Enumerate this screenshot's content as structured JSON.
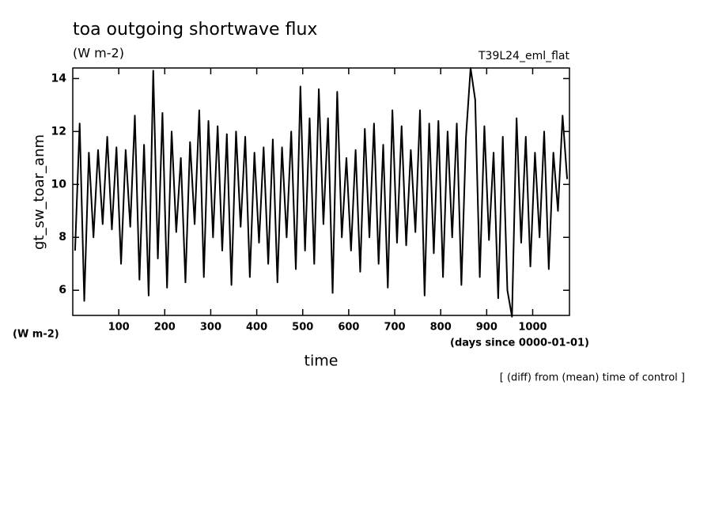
{
  "chart_data": {
    "type": "line",
    "title": "toa outgoing shortwave flux",
    "subtitle": "(W m-2)",
    "run_label": "T39L24_eml_flat",
    "y_label": "gt_sw_toar_anm",
    "y_unit": "(W m-2)",
    "x_unit": "(days since 0000-01-01)",
    "x_label": "time",
    "note": "[ (diff) from (mean) time of control ]",
    "xlim": [
      0,
      1080
    ],
    "ylim": [
      5.05,
      14.4
    ],
    "xticks": [
      100,
      200,
      300,
      400,
      500,
      600,
      700,
      800,
      900,
      1000
    ],
    "yticks": [
      6,
      8,
      10,
      12,
      14
    ],
    "x": [
      5,
      15,
      25,
      35,
      45,
      55,
      65,
      75,
      85,
      95,
      105,
      115,
      125,
      135,
      145,
      155,
      165,
      175,
      185,
      195,
      205,
      215,
      225,
      235,
      245,
      255,
      265,
      275,
      285,
      295,
      305,
      315,
      325,
      335,
      345,
      355,
      365,
      375,
      385,
      395,
      405,
      415,
      425,
      435,
      445,
      455,
      465,
      475,
      485,
      495,
      505,
      515,
      525,
      535,
      545,
      555,
      565,
      575,
      585,
      595,
      605,
      615,
      625,
      635,
      645,
      655,
      665,
      675,
      685,
      695,
      705,
      715,
      725,
      735,
      745,
      755,
      765,
      775,
      785,
      795,
      805,
      815,
      825,
      835,
      845,
      855,
      865,
      875,
      885,
      895,
      905,
      915,
      925,
      935,
      945,
      955,
      965,
      975,
      985,
      995,
      1005,
      1015,
      1025,
      1035,
      1045,
      1055,
      1065,
      1075
    ],
    "series": [
      {
        "color": "#000000",
        "values": [
          7.5,
          12.3,
          5.6,
          11.2,
          8.0,
          11.3,
          8.5,
          11.8,
          8.3,
          11.4,
          7.0,
          11.3,
          8.4,
          12.6,
          6.4,
          11.5,
          5.8,
          14.3,
          7.2,
          12.7,
          6.1,
          12.0,
          8.2,
          11.0,
          6.3,
          11.6,
          8.5,
          12.8,
          6.5,
          12.4,
          8.0,
          12.2,
          7.5,
          11.9,
          6.2,
          12.0,
          8.4,
          11.8,
          6.5,
          11.2,
          7.8,
          11.4,
          7.0,
          11.7,
          6.3,
          11.4,
          8.0,
          12.0,
          6.8,
          13.7,
          7.5,
          12.5,
          7.0,
          13.6,
          8.5,
          12.5,
          5.9,
          13.5,
          8.0,
          11.0,
          7.5,
          11.3,
          6.7,
          12.1,
          8.0,
          12.3,
          7.0,
          11.5,
          6.1,
          12.8,
          7.8,
          12.2,
          7.7,
          11.3,
          8.2,
          12.8,
          5.8,
          12.3,
          7.4,
          12.4,
          6.5,
          12.0,
          8.0,
          12.3,
          6.2,
          11.8,
          14.4,
          13.2,
          6.5,
          12.2,
          7.9,
          11.2,
          5.7,
          11.8,
          6.0,
          5.0,
          12.5,
          7.8,
          11.8,
          6.9,
          11.2,
          8.0,
          12.0,
          6.8,
          11.2,
          9.0,
          12.6,
          10.2
        ]
      }
    ]
  }
}
